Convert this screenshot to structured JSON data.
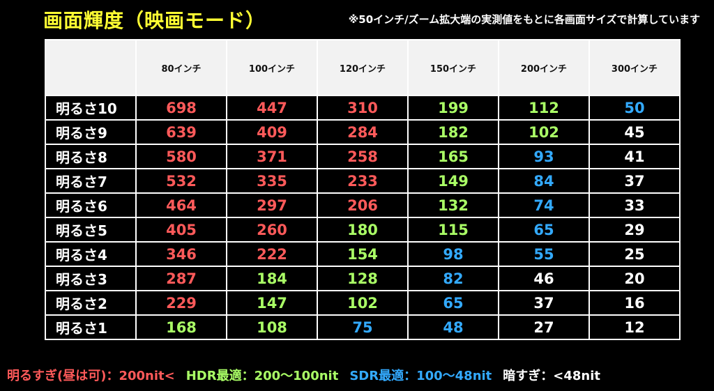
{
  "title": "画面輝度（映画モード）",
  "note": "※50インチ/ズーム拡大端の実測値をもとに各画面サイズで計算しています",
  "colors": {
    "red": "#ff5a5a",
    "green": "#aaff66",
    "blue": "#33aaff",
    "white": "#ffffff",
    "title": "#ffff33"
  },
  "columns": [
    "80インチ",
    "100インチ",
    "120インチ",
    "150インチ",
    "200インチ",
    "300インチ"
  ],
  "rows": [
    {
      "label": "明るさ10",
      "values": [
        698,
        447,
        310,
        199,
        112,
        50
      ],
      "tiers": [
        "red",
        "red",
        "red",
        "green",
        "green",
        "blue"
      ]
    },
    {
      "label": "明るさ9",
      "values": [
        639,
        409,
        284,
        182,
        102,
        45
      ],
      "tiers": [
        "red",
        "red",
        "red",
        "green",
        "green",
        "white"
      ]
    },
    {
      "label": "明るさ8",
      "values": [
        580,
        371,
        258,
        165,
        93,
        41
      ],
      "tiers": [
        "red",
        "red",
        "red",
        "green",
        "blue",
        "white"
      ]
    },
    {
      "label": "明るさ7",
      "values": [
        532,
        335,
        233,
        149,
        84,
        37
      ],
      "tiers": [
        "red",
        "red",
        "red",
        "green",
        "blue",
        "white"
      ]
    },
    {
      "label": "明るさ6",
      "values": [
        464,
        297,
        206,
        132,
        74,
        33
      ],
      "tiers": [
        "red",
        "red",
        "red",
        "green",
        "blue",
        "white"
      ]
    },
    {
      "label": "明るさ5",
      "values": [
        405,
        260,
        180,
        115,
        65,
        29
      ],
      "tiers": [
        "red",
        "red",
        "green",
        "green",
        "blue",
        "white"
      ]
    },
    {
      "label": "明るさ4",
      "values": [
        346,
        222,
        154,
        98,
        55,
        25
      ],
      "tiers": [
        "red",
        "red",
        "green",
        "blue",
        "blue",
        "white"
      ]
    },
    {
      "label": "明るさ3",
      "values": [
        287,
        184,
        128,
        82,
        46,
        20
      ],
      "tiers": [
        "red",
        "green",
        "green",
        "blue",
        "white",
        "white"
      ]
    },
    {
      "label": "明るさ2",
      "values": [
        229,
        147,
        102,
        65,
        37,
        16
      ],
      "tiers": [
        "red",
        "green",
        "green",
        "blue",
        "white",
        "white"
      ]
    },
    {
      "label": "明るさ1",
      "values": [
        168,
        108,
        75,
        48,
        27,
        12
      ],
      "tiers": [
        "green",
        "green",
        "blue",
        "blue",
        "white",
        "white"
      ]
    }
  ],
  "legend": [
    {
      "text": "明るすぎ(昼は可)：200nit<",
      "tier": "red"
    },
    {
      "text": "HDR最適：200〜100nit",
      "tier": "green"
    },
    {
      "text": "SDR最適：100〜48nit",
      "tier": "blue"
    },
    {
      "text": "暗すぎ：<48nit",
      "tier": "white"
    }
  ]
}
